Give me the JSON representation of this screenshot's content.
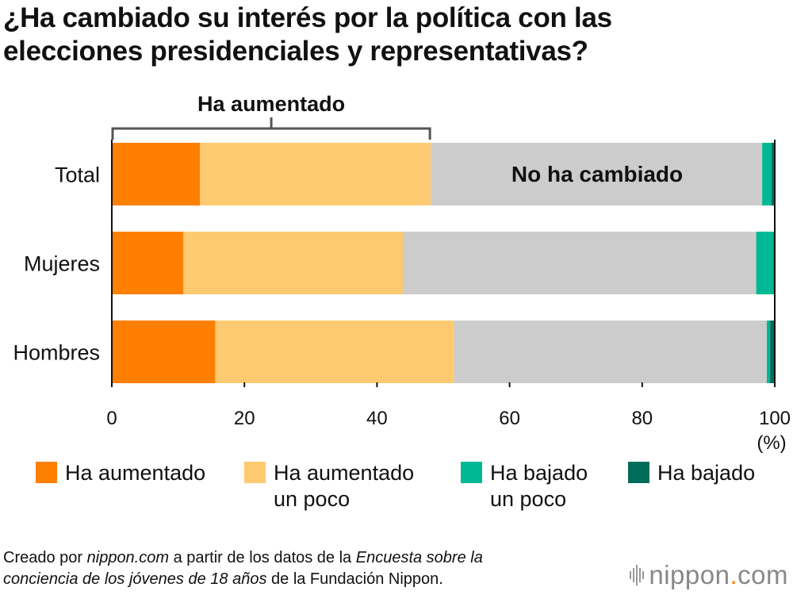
{
  "title_lines": [
    "¿Ha cambiado su interés por la política con las",
    "elecciones presidenciales y representativas?"
  ],
  "chart_data": {
    "type": "bar",
    "orientation": "horizontal",
    "stacked": true,
    "title": "¿Ha cambiado su interés por la política con las elecciones presidenciales y representativas?",
    "categories": [
      "Total",
      "Mujeres",
      "Hombres"
    ],
    "series": [
      {
        "name": "Ha aumentado",
        "color": "#ff7f00",
        "values": [
          13.3,
          10.8,
          15.6
        ]
      },
      {
        "name": "Ha aumentado un poco",
        "color": "#fdca72",
        "values": [
          34.8,
          33.1,
          36.0
        ]
      },
      {
        "name": "No ha cambiado",
        "color": "#cccccc",
        "values": [
          50.0,
          53.3,
          47.2
        ]
      },
      {
        "name": "Ha bajado un poco",
        "color": "#00b894",
        "values": [
          1.4,
          2.6,
          0.5
        ]
      },
      {
        "name": "Ha bajado",
        "color": "#006c5a",
        "values": [
          0.5,
          0.2,
          0.7
        ]
      }
    ],
    "xlim": [
      0,
      100
    ],
    "xticks": [
      0,
      20,
      40,
      60,
      80,
      100
    ],
    "xtick_labels": [
      "0",
      "20",
      "40",
      "60",
      "80",
      "100"
    ],
    "xunit_label": "(%)",
    "xlabel": "",
    "ylabel": "",
    "grid": false,
    "legend_position": "bottom",
    "annotations": [
      {
        "text": "Ha aumentado",
        "type": "bracket",
        "from": 0,
        "to": 48.1,
        "row": "Total"
      },
      {
        "text": "No ha cambiado",
        "type": "inline-label",
        "row": "Total",
        "series": "No ha cambiado"
      }
    ]
  },
  "legend": [
    {
      "lines": [
        "Ha aumentado"
      ],
      "color": "#ff7f00"
    },
    {
      "lines": [
        "Ha aumentado",
        "un poco"
      ],
      "color": "#fdca72"
    },
    {
      "lines": [
        "Ha bajado",
        "un poco"
      ],
      "color": "#00b894"
    },
    {
      "lines": [
        "Ha bajado"
      ],
      "color": "#006c5a"
    }
  ],
  "footer": {
    "p1": "Creado por ",
    "p2": "nippon.com",
    "p3": " a partir de los datos de la ",
    "p4": "Encuesta sobre la",
    "p5": "conciencia de los jóvenes de 18 años",
    "p6": " de la Fundación Nippon."
  },
  "brand": {
    "name": "nippon",
    "dot": ".",
    "tld": "com"
  }
}
